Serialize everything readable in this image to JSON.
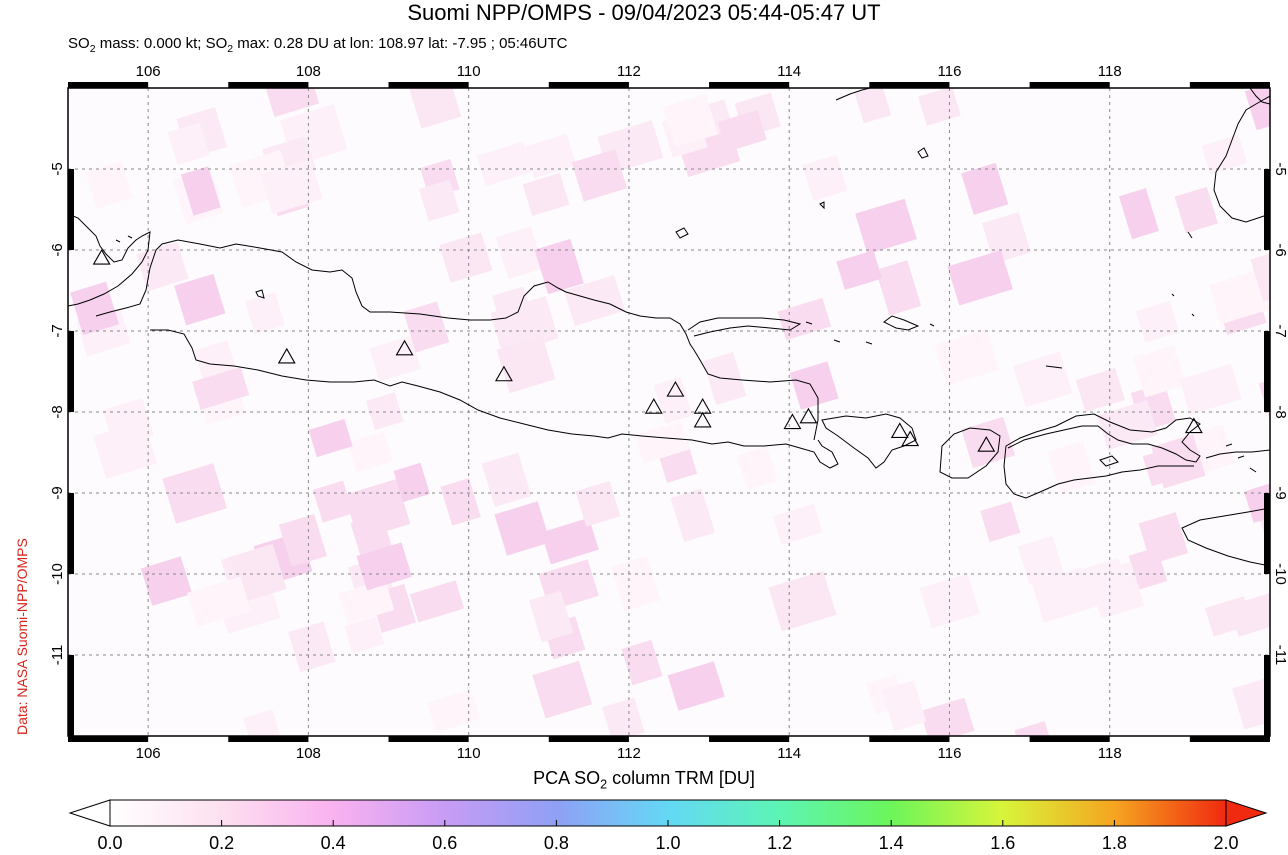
{
  "title": "Suomi NPP/OMPS - 09/04/2023 05:44-05:47 UT",
  "subtitle": {
    "prefix": "SO",
    "sub": "2",
    "mid": " mass: 0.000 kt; SO",
    "rest": " max: 0.28 DU at lon: 108.97 lat: -7.95 ; 05:46UTC"
  },
  "credit": "Data: NASA Suomi-NPP/OMPS",
  "map": {
    "lon_labels": [
      "106",
      "108",
      "110",
      "112",
      "114",
      "116",
      "118"
    ],
    "lon_values": [
      106,
      108,
      110,
      112,
      114,
      116,
      118
    ],
    "lat_labels": [
      "-5",
      "-6",
      "-7",
      "-8",
      "-9",
      "-10",
      "-11"
    ],
    "lat_values": [
      -5,
      -6,
      -7,
      -8,
      -9,
      -10,
      -11
    ],
    "lon_range": [
      105.0,
      120.0
    ],
    "lat_range": [
      -12.0,
      -4.0
    ],
    "grid": "dotted",
    "volcanoes": [
      {
        "lon": 105.42,
        "lat": -6.1
      },
      {
        "lon": 107.73,
        "lat": -7.32
      },
      {
        "lon": 109.2,
        "lat": -7.22
      },
      {
        "lon": 110.44,
        "lat": -7.54
      },
      {
        "lon": 112.31,
        "lat": -7.94
      },
      {
        "lon": 112.58,
        "lat": -7.73
      },
      {
        "lon": 112.92,
        "lat": -7.94
      },
      {
        "lon": 112.92,
        "lat": -8.11
      },
      {
        "lon": 114.04,
        "lat": -8.13
      },
      {
        "lon": 114.24,
        "lat": -8.06
      },
      {
        "lon": 115.38,
        "lat": -8.24
      },
      {
        "lon": 115.51,
        "lat": -8.34
      },
      {
        "lon": 116.46,
        "lat": -8.41
      },
      {
        "lon": 119.05,
        "lat": -8.18
      }
    ],
    "so2_max_value": 0.28
  },
  "colorbar": {
    "title_prefix": "PCA SO",
    "title_sub": "2",
    "title_rest": " column TRM [DU]",
    "ticks": [
      "0.0",
      "0.2",
      "0.4",
      "0.6",
      "0.8",
      "1.0",
      "1.2",
      "1.4",
      "1.6",
      "1.8",
      "2.0"
    ],
    "colors": [
      "#ffffff",
      "#fde0f0",
      "#f9b2f0",
      "#c89cf5",
      "#8fa0f5",
      "#64d8f5",
      "#5cf5b4",
      "#6cf55a",
      "#d8f53a",
      "#f5a520",
      "#f02a10"
    ]
  }
}
